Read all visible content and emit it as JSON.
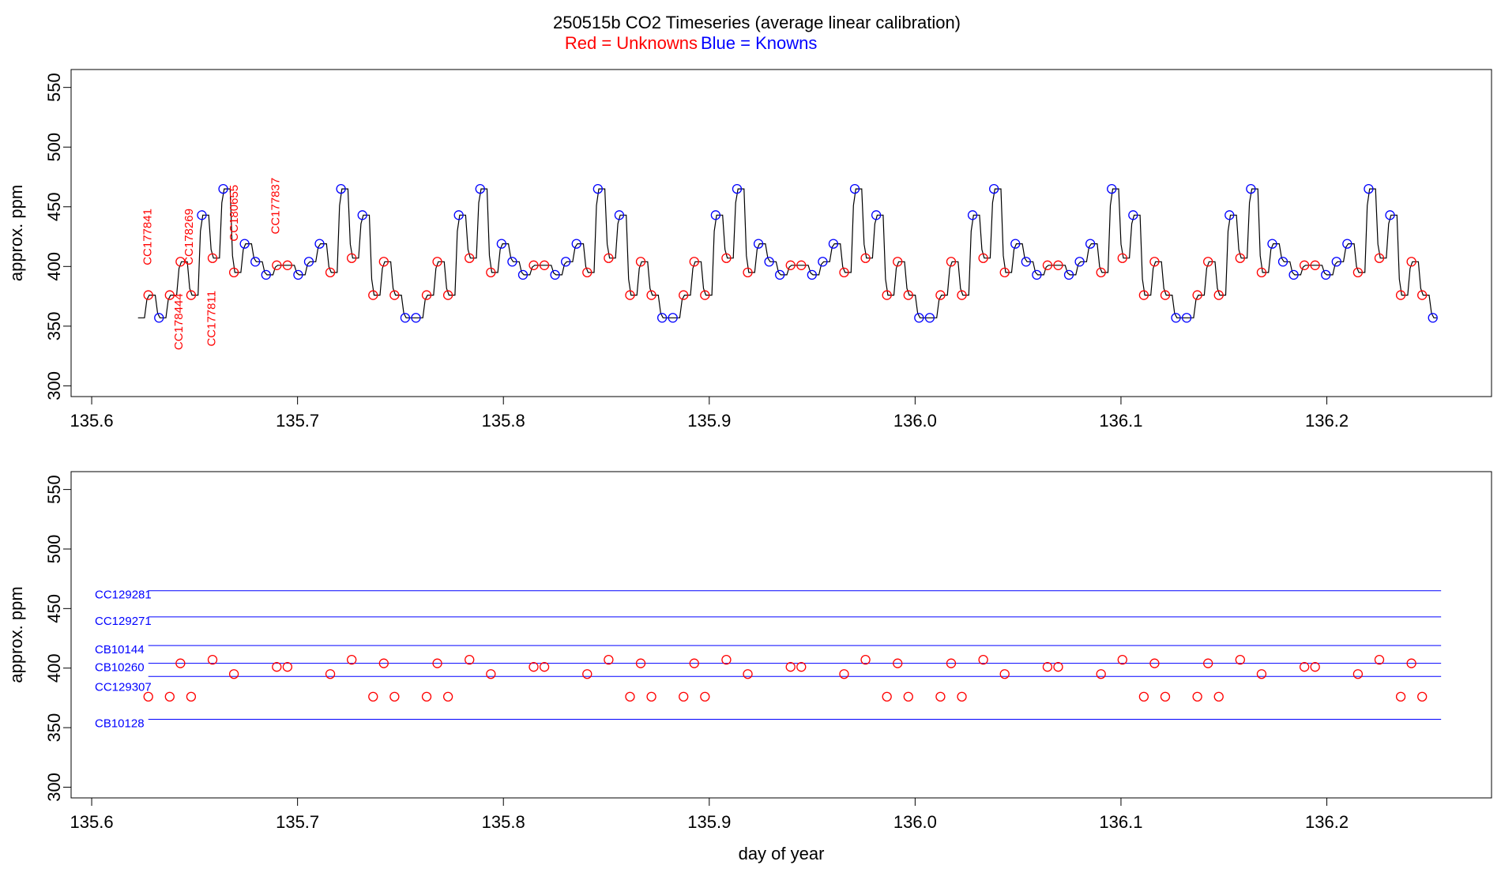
{
  "title": {
    "main": "250515b   CO2 Timeseries (average linear calibration)",
    "legend_red": "Red = Unknowns",
    "legend_blue": "Blue = Knowns"
  },
  "colors": {
    "unknown": "#ff0000",
    "known": "#0000ff",
    "trace": "#000000"
  },
  "chart_data": [
    {
      "type": "line",
      "panel": "top",
      "ylabel": "approx. ppm",
      "xlabel": "",
      "xlim": [
        135.59,
        136.28
      ],
      "ylim": [
        291,
        565
      ],
      "xticks": [
        "135.6",
        "135.7",
        "135.8",
        "135.9",
        "136.0",
        "136.1",
        "136.2"
      ],
      "yticks": [
        "300",
        "350",
        "400",
        "450",
        "500",
        "550"
      ],
      "known_levels": {
        "CB10128": 357,
        "CC129307": 393,
        "CB10260": 404,
        "CB10144": 419,
        "CC129271": 443,
        "CC129281": 465
      },
      "sequence": [
        [
          "U",
          376
        ],
        [
          "K",
          357
        ],
        [
          "U",
          376
        ],
        [
          "U",
          404
        ],
        [
          "U",
          376
        ],
        [
          "K",
          443
        ],
        [
          "U",
          407
        ],
        [
          "K",
          465
        ],
        [
          "U",
          395
        ],
        [
          "K",
          419
        ],
        [
          "K",
          404
        ],
        [
          "K",
          393
        ],
        [
          "U",
          401
        ],
        [
          "U",
          401
        ],
        [
          "K",
          393
        ],
        [
          "K",
          404
        ],
        [
          "K",
          419
        ],
        [
          "U",
          395
        ],
        [
          "K",
          465
        ],
        [
          "U",
          407
        ],
        [
          "K",
          443
        ],
        [
          "U",
          376
        ],
        [
          "U",
          404
        ],
        [
          "U",
          376
        ],
        [
          "K",
          357
        ],
        [
          "K",
          357
        ],
        [
          "U",
          376
        ],
        [
          "U",
          404
        ],
        [
          "U",
          376
        ],
        [
          "K",
          443
        ],
        [
          "U",
          407
        ],
        [
          "K",
          465
        ],
        [
          "U",
          395
        ],
        [
          "K",
          419
        ],
        [
          "K",
          404
        ],
        [
          "K",
          393
        ],
        [
          "U",
          401
        ],
        [
          "U",
          401
        ],
        [
          "K",
          393
        ],
        [
          "K",
          404
        ],
        [
          "K",
          419
        ],
        [
          "U",
          395
        ],
        [
          "K",
          465
        ],
        [
          "U",
          407
        ],
        [
          "K",
          443
        ],
        [
          "U",
          376
        ],
        [
          "U",
          404
        ],
        [
          "U",
          376
        ],
        [
          "K",
          357
        ],
        [
          "K",
          357
        ],
        [
          "U",
          376
        ],
        [
          "U",
          404
        ],
        [
          "U",
          376
        ],
        [
          "K",
          443
        ],
        [
          "U",
          407
        ],
        [
          "K",
          465
        ],
        [
          "U",
          395
        ],
        [
          "K",
          419
        ],
        [
          "K",
          404
        ],
        [
          "K",
          393
        ],
        [
          "U",
          401
        ],
        [
          "U",
          401
        ],
        [
          "K",
          393
        ],
        [
          "K",
          404
        ],
        [
          "K",
          419
        ],
        [
          "U",
          395
        ],
        [
          "K",
          465
        ],
        [
          "U",
          407
        ],
        [
          "K",
          443
        ],
        [
          "U",
          376
        ],
        [
          "U",
          404
        ],
        [
          "U",
          376
        ],
        [
          "K",
          357
        ],
        [
          "K",
          357
        ],
        [
          "U",
          376
        ],
        [
          "U",
          404
        ],
        [
          "U",
          376
        ],
        [
          "K",
          443
        ],
        [
          "U",
          407
        ],
        [
          "K",
          465
        ],
        [
          "U",
          395
        ],
        [
          "K",
          419
        ],
        [
          "K",
          404
        ],
        [
          "K",
          393
        ],
        [
          "U",
          401
        ],
        [
          "U",
          401
        ],
        [
          "K",
          393
        ],
        [
          "K",
          404
        ],
        [
          "K",
          419
        ],
        [
          "U",
          395
        ],
        [
          "K",
          465
        ],
        [
          "U",
          407
        ],
        [
          "K",
          443
        ],
        [
          "U",
          376
        ],
        [
          "U",
          404
        ],
        [
          "U",
          376
        ],
        [
          "K",
          357
        ],
        [
          "K",
          357
        ],
        [
          "U",
          376
        ],
        [
          "U",
          404
        ],
        [
          "U",
          376
        ],
        [
          "K",
          443
        ],
        [
          "U",
          407
        ],
        [
          "K",
          465
        ],
        [
          "U",
          395
        ],
        [
          "K",
          419
        ],
        [
          "K",
          404
        ],
        [
          "K",
          393
        ],
        [
          "U",
          401
        ],
        [
          "U",
          401
        ],
        [
          "K",
          393
        ],
        [
          "K",
          404
        ],
        [
          "K",
          419
        ],
        [
          "U",
          395
        ],
        [
          "K",
          465
        ],
        [
          "U",
          407
        ],
        [
          "K",
          443
        ],
        [
          "U",
          376
        ],
        [
          "U",
          404
        ],
        [
          "U",
          376
        ],
        [
          "K",
          357
        ]
      ],
      "x_start": 135.6275,
      "x_step": 0.0052,
      "trace_start": [
        135.6225,
        357
      ],
      "sample_labels": [
        {
          "label": "CC177841",
          "x": 135.6275,
          "y": 401
        },
        {
          "label": "CC178444",
          "x": 135.6425,
          "y": 330
        },
        {
          "label": "CC178269",
          "x": 135.6475,
          "y": 401
        },
        {
          "label": "CC177811",
          "x": 135.6585,
          "y": 333
        },
        {
          "label": "CC180655",
          "x": 135.6695,
          "y": 421
        },
        {
          "label": "CC177837",
          "x": 135.6895,
          "y": 427
        }
      ]
    },
    {
      "type": "scatter",
      "panel": "bottom",
      "ylabel": "approx. ppm",
      "xlabel": "day of year",
      "xlim": [
        135.59,
        136.28
      ],
      "ylim": [
        291,
        565
      ],
      "xticks": [
        "135.6",
        "135.7",
        "135.8",
        "135.9",
        "136.0",
        "136.1",
        "136.2"
      ],
      "yticks": [
        "300",
        "350",
        "400",
        "450",
        "500",
        "550"
      ],
      "reference_lines": [
        {
          "name": "CC129281",
          "value": 465
        },
        {
          "name": "CC129271",
          "value": 443
        },
        {
          "name": "CB10144",
          "value": 419
        },
        {
          "name": "CB10260",
          "value": 404
        },
        {
          "name": "CC129307",
          "value": 393
        },
        {
          "name": "CB10128",
          "value": 357
        }
      ],
      "line_x_range": [
        135.6275,
        136.2555
      ]
    }
  ]
}
